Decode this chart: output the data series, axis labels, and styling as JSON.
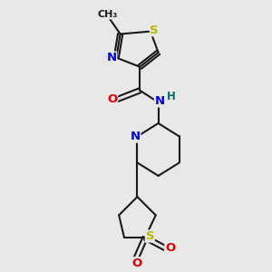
{
  "bg_color": "#e8e8e8",
  "bond_color": "#1a1a1a",
  "bond_width": 1.5,
  "atom_colors": {
    "S": "#b8b800",
    "N": "#0000dd",
    "O": "#dd0000",
    "H": "#007070",
    "C": "#1a1a1a"
  },
  "font_size": 9.5,
  "small_font_size": 8.5,
  "methyl_font_size": 8.0
}
